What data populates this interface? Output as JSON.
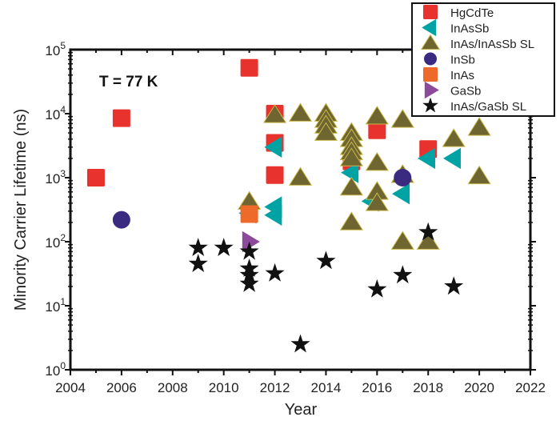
{
  "chart_data": {
    "type": "scatter",
    "title": "",
    "xlabel": "Year",
    "ylabel": "Minority Carrier Lifetime (ns)",
    "xlim": [
      2004,
      2022
    ],
    "ylim": [
      1,
      100000
    ],
    "yscale": "log",
    "x_ticks": [
      "2004",
      "2006",
      "2008",
      "2010",
      "2012",
      "2014",
      "2016",
      "2018",
      "2020",
      "2022"
    ],
    "y_ticks": [
      {
        "base": "10",
        "exp": "0"
      },
      {
        "base": "10",
        "exp": "1"
      },
      {
        "base": "10",
        "exp": "2"
      },
      {
        "base": "10",
        "exp": "3"
      },
      {
        "base": "10",
        "exp": "4"
      },
      {
        "base": "10",
        "exp": "5"
      }
    ],
    "annotation": "T = 77 K",
    "legend_position": "top-right",
    "series": [
      {
        "name": "HgCdTe",
        "marker": "square",
        "color": "#e8322e",
        "points": [
          [
            2005,
            1000
          ],
          [
            2006,
            8500
          ],
          [
            2011,
            52000
          ],
          [
            2012,
            10000
          ],
          [
            2012,
            3500
          ],
          [
            2012,
            1100
          ],
          [
            2015,
            1800
          ],
          [
            2016,
            5500
          ],
          [
            2018,
            2800
          ]
        ]
      },
      {
        "name": "InAsSb",
        "marker": "triangle-left",
        "color": "#00a3a3",
        "points": [
          [
            2011,
            280
          ],
          [
            2012,
            3000
          ],
          [
            2012,
            350
          ],
          [
            2012,
            260
          ],
          [
            2015,
            1200
          ],
          [
            2015.8,
            430
          ],
          [
            2017,
            560
          ],
          [
            2018,
            2000
          ],
          [
            2019,
            2000
          ]
        ]
      },
      {
        "name": "InAs/InAsSb SL",
        "marker": "triangle-up",
        "color": "#6e6530",
        "points": [
          [
            2011,
            420
          ],
          [
            2012,
            9500
          ],
          [
            2013,
            10000
          ],
          [
            2013,
            1000
          ],
          [
            2014,
            10000
          ],
          [
            2014,
            8000
          ],
          [
            2014,
            6500
          ],
          [
            2014,
            5000
          ],
          [
            2015,
            5000
          ],
          [
            2015,
            4000
          ],
          [
            2015,
            3000
          ],
          [
            2015,
            2500
          ],
          [
            2015,
            2000
          ],
          [
            2015,
            700
          ],
          [
            2015,
            200
          ],
          [
            2016,
            9000
          ],
          [
            2016,
            1700
          ],
          [
            2016,
            600
          ],
          [
            2016,
            400
          ],
          [
            2017,
            8000
          ],
          [
            2017,
            1100
          ],
          [
            2017,
            100
          ],
          [
            2018,
            100
          ],
          [
            2019,
            4000
          ],
          [
            2020,
            6000
          ],
          [
            2020,
            1050
          ]
        ]
      },
      {
        "name": "InSb",
        "marker": "circle",
        "color": "#3a2a80",
        "points": [
          [
            2006,
            220
          ],
          [
            2017,
            1000
          ]
        ]
      },
      {
        "name": "InAs",
        "marker": "square",
        "color": "#ee6a2a",
        "points": [
          [
            2011,
            270
          ]
        ]
      },
      {
        "name": "GaSb",
        "marker": "triangle-right",
        "color": "#8e4a9a",
        "points": [
          [
            2011,
            100
          ]
        ]
      },
      {
        "name": "InAs/GaSb SL",
        "marker": "star",
        "color": "#111111",
        "points": [
          [
            2009,
            80
          ],
          [
            2009,
            45
          ],
          [
            2010,
            80
          ],
          [
            2011,
            70
          ],
          [
            2011,
            38
          ],
          [
            2011,
            30
          ],
          [
            2011,
            22
          ],
          [
            2012,
            32
          ],
          [
            2013,
            2.5
          ],
          [
            2014,
            50
          ],
          [
            2016,
            18
          ],
          [
            2017,
            30
          ],
          [
            2018,
            140
          ],
          [
            2019,
            20
          ]
        ]
      }
    ]
  }
}
